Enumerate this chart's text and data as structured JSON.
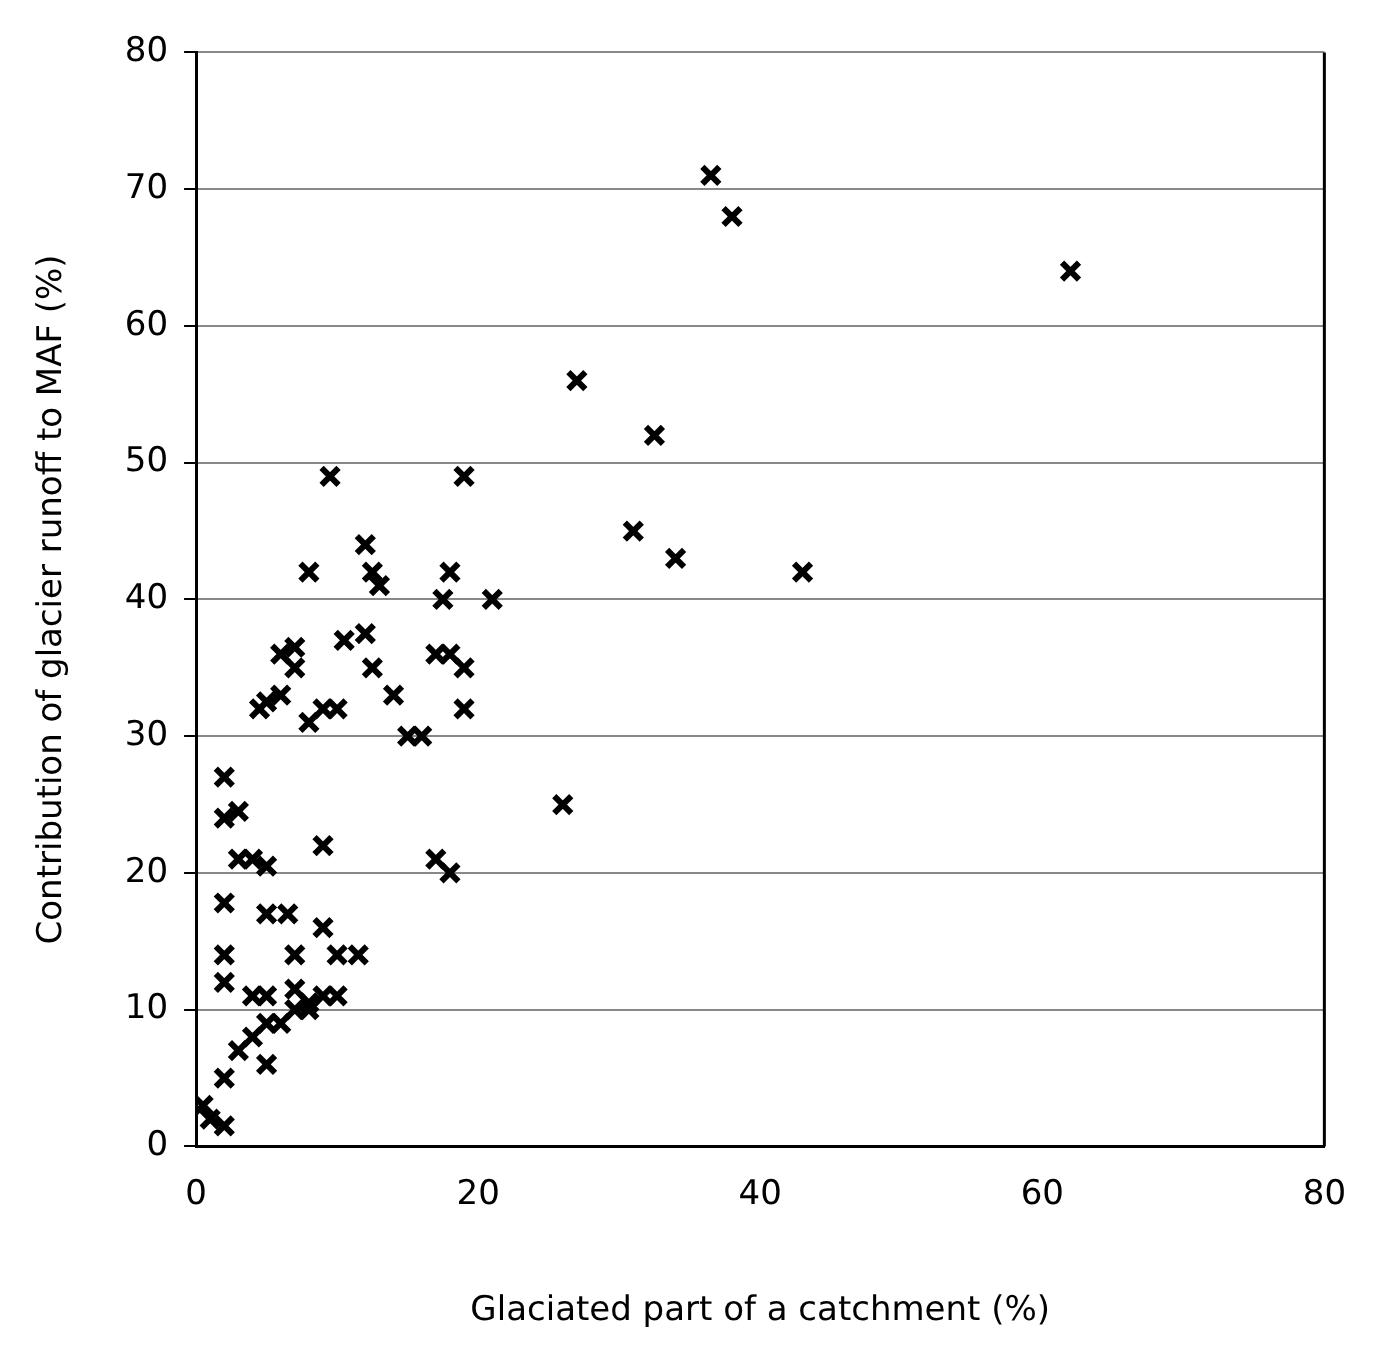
{
  "chart_data": {
    "type": "scatter",
    "xlabel": "Glaciated part of a catchment (%)",
    "ylabel": "Contribution of glacier runoff to MAF (%)",
    "x": [
      0.5,
      1,
      2,
      2,
      3,
      4,
      5,
      5,
      6,
      7,
      8,
      9,
      10,
      7,
      8,
      2,
      2,
      2,
      2,
      2,
      3,
      3,
      4,
      5,
      4,
      5,
      5,
      6.5,
      7,
      9,
      10,
      11.5,
      9,
      4.5,
      5,
      6,
      6,
      7,
      7,
      8,
      9,
      10,
      8,
      9.5,
      10.5,
      12,
      12,
      12.5,
      13,
      12.5,
      14,
      15,
      16,
      17,
      17.5,
      18,
      18,
      19,
      19,
      19,
      21,
      17,
      18,
      26,
      27,
      31,
      32.5,
      34,
      36.5,
      38,
      43,
      62
    ],
    "series": [
      {
        "color": "#000000",
        "values": [
          3,
          2,
          1.5,
          5,
          7,
          8,
          6,
          9,
          9,
          10,
          10,
          11,
          11,
          11.5,
          10.5,
          12,
          14,
          17.8,
          24,
          27,
          24.5,
          21,
          21,
          20.5,
          11,
          11,
          17,
          17,
          14,
          16,
          14,
          14,
          22,
          32,
          32.5,
          33,
          36,
          35,
          36.5,
          31,
          32,
          32,
          42,
          49,
          37,
          37.5,
          44,
          42,
          41,
          35,
          33,
          30,
          30,
          36,
          40,
          36,
          42,
          35,
          32,
          49,
          40,
          21,
          20,
          25,
          56,
          45,
          52,
          43,
          71,
          68,
          42,
          64
        ]
      }
    ],
    "xlim": [
      0,
      80
    ],
    "ylim": [
      0,
      80
    ],
    "xticks": [
      0,
      20,
      40,
      60,
      80
    ],
    "yticks": [
      0,
      10,
      20,
      30,
      40,
      50,
      60,
      70,
      80
    ],
    "grid": "y",
    "marker": "cross",
    "legend": false
  }
}
